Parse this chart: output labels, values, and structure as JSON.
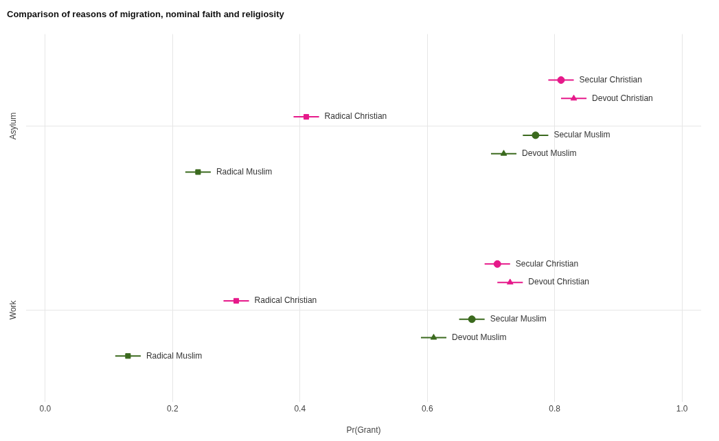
{
  "chart_data": {
    "type": "scatter",
    "orientation": "horizontal",
    "title": "Comparison of reasons of migration, nominal faith and religiosity",
    "xlabel": "Pr(Grant)",
    "categories": [
      "Asylum",
      "Work"
    ],
    "series": [
      {
        "name": "Secular Christian",
        "color": "#e6198a",
        "marker": "circle",
        "values": [
          0.81,
          0.71
        ],
        "errors": [
          0.02,
          0.02
        ]
      },
      {
        "name": "Devout Christian",
        "color": "#e6198a",
        "marker": "triangle",
        "values": [
          0.83,
          0.73
        ],
        "errors": [
          0.02,
          0.02
        ]
      },
      {
        "name": "Radical Christian",
        "color": "#e6198a",
        "marker": "square",
        "values": [
          0.41,
          0.3
        ],
        "errors": [
          0.02,
          0.02
        ]
      },
      {
        "name": "Secular Muslim",
        "color": "#3b6a1e",
        "marker": "circle",
        "values": [
          0.77,
          0.67
        ],
        "errors": [
          0.02,
          0.02
        ]
      },
      {
        "name": "Devout Muslim",
        "color": "#3b6a1e",
        "marker": "triangle",
        "values": [
          0.72,
          0.61
        ],
        "errors": [
          0.02,
          0.02
        ]
      },
      {
        "name": "Radical Muslim",
        "color": "#3b6a1e",
        "marker": "square",
        "values": [
          0.24,
          0.13
        ],
        "errors": [
          0.02,
          0.02
        ]
      }
    ],
    "xlim": [
      -0.03,
      1.03
    ],
    "xticks": [
      {
        "value": 0,
        "label": "0.0"
      },
      0.2,
      0.4,
      0.6,
      0.8,
      {
        "value": 1,
        "label": "1.0"
      }
    ],
    "grid": true,
    "legend": false
  }
}
